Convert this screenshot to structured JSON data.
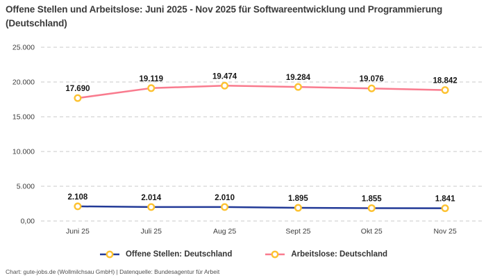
{
  "title": "Offene Stellen und Arbeitslose: Juni 2025 - Nov 2025 für Softwareentwicklung und Programmierung (Deutschland)",
  "footer": "Chart: gute-jobs.de (Wollmilchsau GmbH) | Datenquelle: Bundesagentur für Arbeit",
  "colors": {
    "grid": "#c9c9c9",
    "title_text": "#3a3a3a",
    "axis_text": "#3c3c3c",
    "data_label_text": "#161616"
  },
  "chart_data": {
    "type": "line",
    "title": "Offene Stellen und Arbeitslose: Juni 2025 - Nov 2025 für Softwareentwicklung und Programmierung (Deutschland)",
    "categories": [
      "Juni 25",
      "Juli 25",
      "Aug 25",
      "Sept 25",
      "Okt 25",
      "Nov 25"
    ],
    "series": [
      {
        "name": "Offene Stellen: Deutschland",
        "color": "#223a97",
        "values": [
          2108,
          2014,
          2010,
          1895,
          1855,
          1841
        ],
        "labels": [
          "2.108",
          "2.014",
          "2.010",
          "1.895",
          "1.855",
          "1.841"
        ]
      },
      {
        "name": "Arbeitslose: Deutschland",
        "color": "#f97b8e",
        "values": [
          17690,
          19119,
          19474,
          19284,
          19076,
          18842
        ],
        "labels": [
          "17.690",
          "19.119",
          "19.474",
          "19.284",
          "19.076",
          "18.842"
        ]
      }
    ],
    "marker": {
      "fill": "#ffffff",
      "stroke": "#fdc231"
    },
    "y_ticks": [
      {
        "value": 0,
        "label": "0,00"
      },
      {
        "value": 5000,
        "label": "5.000"
      },
      {
        "value": 10000,
        "label": "10.000"
      },
      {
        "value": 15000,
        "label": "15.000"
      },
      {
        "value": 20000,
        "label": "20.000"
      },
      {
        "value": 25000,
        "label": "25.000"
      }
    ],
    "ylim": [
      0,
      25000
    ],
    "xlabel": "",
    "ylabel": "",
    "grid": "horizontal-dashed",
    "legend_position": "bottom"
  }
}
